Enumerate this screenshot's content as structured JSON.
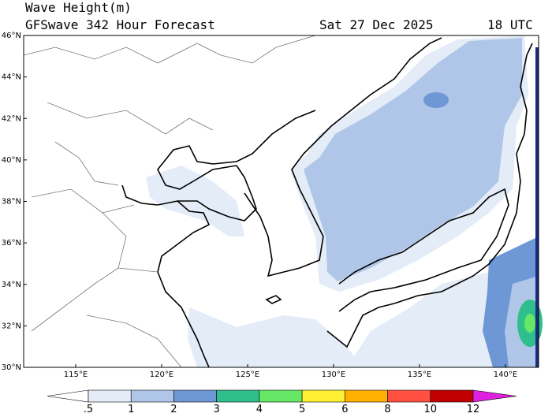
{
  "header": {
    "title": "Wave Height(m)",
    "subtitle": "GFSwave 342 Hour Forecast",
    "date": "Sat 27 Dec 2025",
    "time": "18 UTC"
  },
  "map": {
    "lat_labels": [
      "30°N",
      "32°N",
      "34°N",
      "36°N",
      "38°N",
      "40°N",
      "42°N",
      "44°N",
      "46°N"
    ],
    "lon_labels": [
      "115°E",
      "120°E",
      "125°E",
      "130°E",
      "135°E",
      "140°E"
    ]
  },
  "colorbar": {
    "labels": [
      ".5",
      "1",
      "2",
      "3",
      "4",
      "5",
      "6",
      "8",
      "10",
      "12"
    ],
    "colors": [
      "#ffffff",
      "#e3ecf7",
      "#b0c6e8",
      "#6e97d6",
      "#2fbf8c",
      "#66e866",
      "#fff033",
      "#ffb000",
      "#ff5040",
      "#c00000",
      "#e020e0"
    ]
  }
}
